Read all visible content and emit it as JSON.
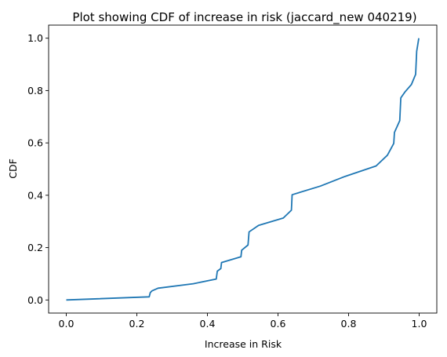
{
  "chart_data": {
    "type": "line",
    "title": "Plot showing CDF of increase in risk (jaccard_new 040219)",
    "xlabel": "Increase in Risk",
    "ylabel": "CDF",
    "xlim": [
      -0.05,
      1.05
    ],
    "ylim": [
      -0.05,
      1.05
    ],
    "xticks": [
      0.0,
      0.2,
      0.4,
      0.6,
      0.8,
      1.0
    ],
    "xtick_labels": [
      "0.0",
      "0.2",
      "0.4",
      "0.6",
      "0.8",
      "1.0"
    ],
    "yticks": [
      0.0,
      0.2,
      0.4,
      0.6,
      0.8,
      1.0
    ],
    "ytick_labels": [
      "0.0",
      "0.2",
      "0.4",
      "0.6",
      "0.8",
      "1.0"
    ],
    "grid": false,
    "color": "#1f77b4",
    "series": [
      {
        "x": [
          0.0,
          0.235,
          0.238,
          0.243,
          0.26,
          0.36,
          0.425,
          0.428,
          0.438,
          0.44,
          0.495,
          0.497,
          0.515,
          0.518,
          0.545,
          0.615,
          0.638,
          0.64,
          0.72,
          0.79,
          0.878,
          0.91,
          0.928,
          0.93,
          0.945,
          0.948,
          0.96,
          0.978,
          0.99,
          0.993,
          0.999
        ],
        "y": [
          0.0,
          0.012,
          0.028,
          0.035,
          0.045,
          0.062,
          0.08,
          0.11,
          0.12,
          0.143,
          0.165,
          0.19,
          0.21,
          0.26,
          0.285,
          0.313,
          0.343,
          0.402,
          0.435,
          0.472,
          0.512,
          0.553,
          0.598,
          0.64,
          0.685,
          0.772,
          0.795,
          0.823,
          0.862,
          0.95,
          1.0
        ]
      }
    ]
  }
}
